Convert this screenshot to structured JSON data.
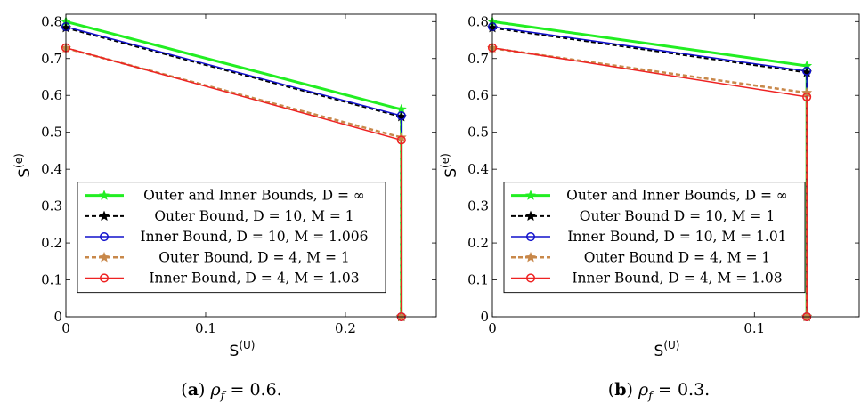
{
  "chart_data": [
    {
      "type": "line",
      "caption_letter": "a",
      "caption_rest": "0.6.",
      "xlabel": "S",
      "xlabel_sup": "(U)",
      "ylabel": "S",
      "ylabel_sup": "(e)",
      "xlim": [
        0,
        0.265
      ],
      "ylim": [
        0,
        0.82
      ],
      "xticks": [
        0,
        0.1,
        0.2
      ],
      "xtick_labels": [
        "0",
        "0.1",
        "0.2"
      ],
      "yticks": [
        0,
        0.1,
        0.2,
        0.3,
        0.4,
        0.5,
        0.6,
        0.7,
        0.8
      ],
      "ytick_labels": [
        "0",
        "0.1",
        "0.2",
        "0.3",
        "0.4",
        "0.5",
        "0.6",
        "0.7",
        "0.8"
      ],
      "legend_position": "bottom-left",
      "series": [
        {
          "name": "Outer and Inner Bounds, D = ∞",
          "color": "#22ee22",
          "style": "solid",
          "width": 3,
          "marker": "star",
          "x": [
            0,
            0.24,
            0.24
          ],
          "y": [
            0.8,
            0.562,
            0
          ]
        },
        {
          "name": "Outer Bound, D = 10, M = 1",
          "color": "#000000",
          "style": "dashed",
          "width": 2,
          "marker": "star",
          "x": [
            0,
            0.24,
            0.24
          ],
          "y": [
            0.783,
            0.542,
            0
          ]
        },
        {
          "name": "Inner Bound, D = 10, M = 1.006",
          "color": "#1111cc",
          "style": "solid",
          "width": 1.5,
          "marker": "circle",
          "x": [
            0,
            0.24,
            0.24
          ],
          "y": [
            0.786,
            0.545,
            0
          ]
        },
        {
          "name": "Outer Bound, D = 4, M = 1",
          "color": "#c8884a",
          "style": "dashed",
          "width": 2.5,
          "marker": "star",
          "x": [
            0,
            0.24,
            0.24
          ],
          "y": [
            0.728,
            0.486,
            0
          ]
        },
        {
          "name": "Inner Bound, D = 4, M = 1.03",
          "color": "#ee2222",
          "style": "solid",
          "width": 1.5,
          "marker": "circle",
          "x": [
            0,
            0.24,
            0.24
          ],
          "y": [
            0.729,
            0.479,
            0
          ]
        }
      ]
    },
    {
      "type": "line",
      "caption_letter": "b",
      "caption_rest": "0.3.",
      "xlabel": "S",
      "xlabel_sup": "(U)",
      "ylabel": "S",
      "ylabel_sup": "(e)",
      "xlim": [
        0,
        0.14
      ],
      "ylim": [
        0,
        0.82
      ],
      "xticks": [
        0,
        0.1
      ],
      "xtick_labels": [
        "0",
        "0.1"
      ],
      "yticks": [
        0,
        0.1,
        0.2,
        0.3,
        0.4,
        0.5,
        0.6,
        0.7,
        0.8
      ],
      "ytick_labels": [
        "0",
        "0.1",
        "0.2",
        "0.3",
        "0.4",
        "0.5",
        "0.6",
        "0.7",
        "0.8"
      ],
      "legend_position": "bottom-left",
      "series": [
        {
          "name": "Outer and Inner Bounds, D = ∞",
          "color": "#22ee22",
          "style": "solid",
          "width": 3,
          "marker": "star",
          "x": [
            0,
            0.12,
            0.12
          ],
          "y": [
            0.8,
            0.68,
            0
          ]
        },
        {
          "name": "Outer Bound D = 10, M = 1",
          "color": "#000000",
          "style": "dashed",
          "width": 2,
          "marker": "star",
          "x": [
            0,
            0.12,
            0.12
          ],
          "y": [
            0.783,
            0.662,
            0
          ]
        },
        {
          "name": "Inner Bound, D = 10, M = 1.01",
          "color": "#1111cc",
          "style": "solid",
          "width": 1.5,
          "marker": "circle",
          "x": [
            0,
            0.12,
            0.12
          ],
          "y": [
            0.786,
            0.666,
            0
          ]
        },
        {
          "name": "Outer Bound D = 4, M = 1",
          "color": "#c8884a",
          "style": "dashed",
          "width": 2.5,
          "marker": "star",
          "x": [
            0,
            0.12,
            0.12
          ],
          "y": [
            0.728,
            0.607,
            0
          ]
        },
        {
          "name": "Inner Bound, D = 4, M = 1.08",
          "color": "#ee2222",
          "style": "solid",
          "width": 1.5,
          "marker": "circle",
          "x": [
            0,
            0.12,
            0.12
          ],
          "y": [
            0.729,
            0.596,
            0
          ]
        }
      ]
    }
  ]
}
